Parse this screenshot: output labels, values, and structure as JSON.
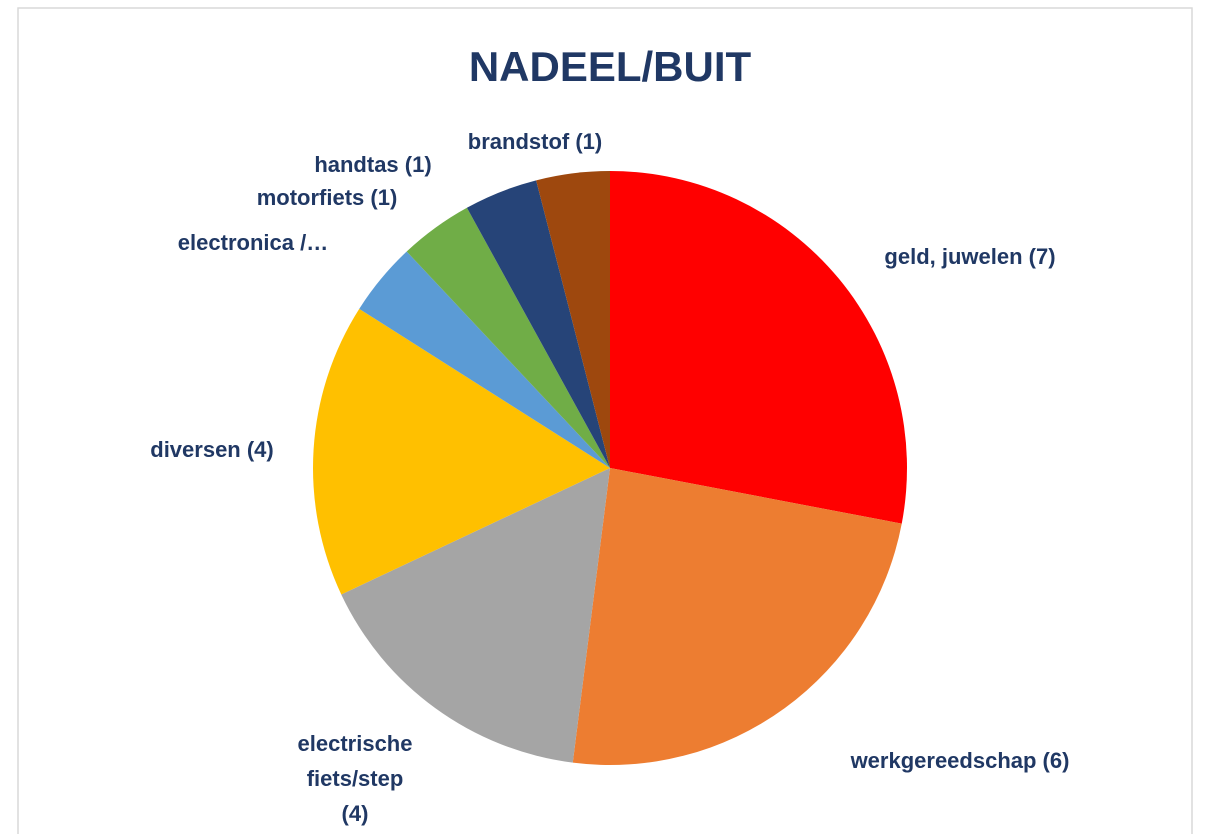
{
  "chart_data": {
    "type": "pie",
    "title": "NADEEL/BUIT",
    "categories": [
      "geld, juwelen (7)",
      "werkgereedschap (6)",
      "electrische fiets/step (4)",
      "diversen (4)",
      "electronica /…",
      "motorfiets (1)",
      "handtas  (1)",
      "brandstof  (1)"
    ],
    "values": [
      7,
      6,
      4,
      4,
      1,
      1,
      1,
      1
    ],
    "colors": [
      "#ff0000",
      "#ed7d31",
      "#a5a5a5",
      "#ffc000",
      "#5b9bd5",
      "#70ad47",
      "#264478",
      "#9e480e"
    ]
  }
}
